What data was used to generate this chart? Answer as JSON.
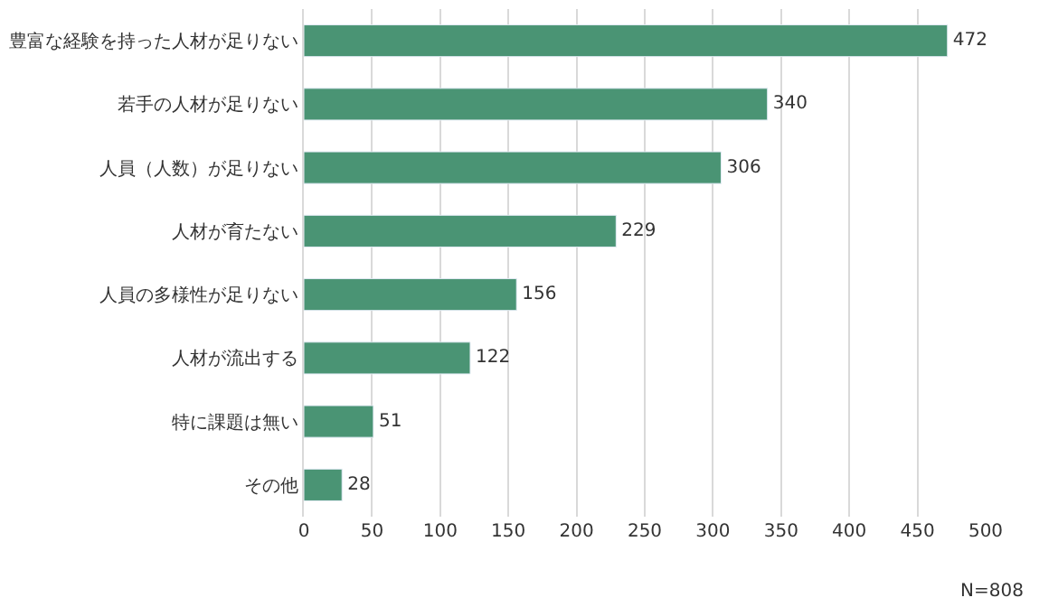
{
  "chart_data": {
    "type": "bar",
    "orientation": "horizontal",
    "categories": [
      "豊富な経験を持った人材が足りない",
      "若手の人材が足りない",
      "人員（人数）が足りない",
      "人材が育たない",
      "人員の多様性が足りない",
      "人材が流出する",
      "特に課題は無い",
      "その他"
    ],
    "values": [
      472,
      340,
      306,
      229,
      156,
      122,
      51,
      28
    ],
    "color": "#4a9474",
    "data_labels": true,
    "xlim": [
      0,
      500
    ],
    "xticks": [
      0,
      50,
      100,
      150,
      200,
      250,
      300,
      350,
      400,
      450,
      500
    ],
    "grid": "x",
    "annotations": [
      "N=808"
    ]
  }
}
